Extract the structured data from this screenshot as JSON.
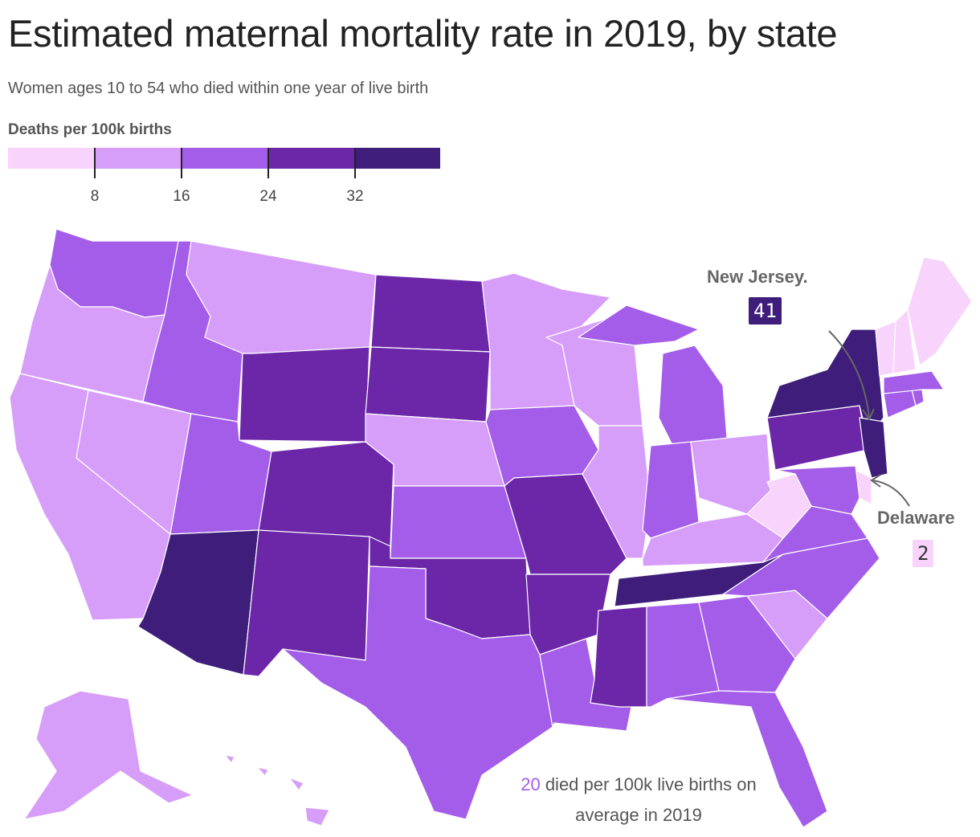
{
  "header": {
    "title": "Estimated maternal mortality rate in 2019, by state",
    "subtitle": "Women ages 10 to 54 who died within one year of live birth"
  },
  "legend": {
    "title": "Deaths per 100k births",
    "tick_labels": [
      "8",
      "16",
      "24",
      "32"
    ],
    "colors": [
      "#f8d3fb",
      "#d79ef9",
      "#a45de9",
      "#6c27a8",
      "#3e1e7a"
    ]
  },
  "callouts": {
    "new_jersey": {
      "name": "New Jersey.",
      "value": "41",
      "badge_bg": "#3e1e7a",
      "badge_fg": "#ffffff"
    },
    "delaware": {
      "name": "Delaware",
      "value": "2",
      "badge_bg": "#f8d3fb",
      "badge_fg": "#333333"
    }
  },
  "footnote": {
    "value": "20",
    "text_line1": " died per 100k live births on",
    "text_line2": "average in 2019"
  },
  "chart_data": {
    "type": "choropleth",
    "title": "Estimated maternal mortality rate in 2019, by state",
    "subtitle": "Women ages 10 to 54 who died within one year of live birth",
    "legend_title": "Deaths per 100k births",
    "bins": [
      {
        "range": "<8",
        "color": "#f8d3fb"
      },
      {
        "range": "8–16",
        "color": "#d79ef9"
      },
      {
        "range": "16–24",
        "color": "#a45de9"
      },
      {
        "range": "24–32",
        "color": "#6c27a8"
      },
      {
        "range": ">32",
        "color": "#3e1e7a"
      }
    ],
    "labeled_values": {
      "New Jersey": 41,
      "Delaware": 2,
      "US average": 20
    },
    "state_bins": {
      "WA": 2,
      "OR": 1,
      "CA": 1,
      "NV": 1,
      "ID": 2,
      "MT": 1,
      "WY": 3,
      "UT": 2,
      "AZ": 4,
      "CO": 3,
      "NM": 3,
      "ND": 3,
      "SD": 3,
      "NE": 1,
      "KS": 2,
      "OK": 3,
      "TX": 2,
      "MN": 1,
      "IA": 2,
      "MO": 3,
      "AR": 3,
      "LA": 2,
      "WI": 1,
      "IL": 1,
      "MI": 2,
      "IN": 2,
      "OH": 1,
      "KY": 1,
      "TN": 4,
      "MS": 3,
      "AL": 2,
      "GA": 2,
      "FL": 2,
      "SC": 1,
      "NC": 2,
      "VA": 2,
      "WV": 0,
      "PA": 3,
      "NY": 4,
      "NJ": 4,
      "DE": 0,
      "MD": 2,
      "CT": 2,
      "RI": 2,
      "MA": 2,
      "VT": 0,
      "NH": 0,
      "ME": 0,
      "AK": 1,
      "HI": 1
    }
  }
}
